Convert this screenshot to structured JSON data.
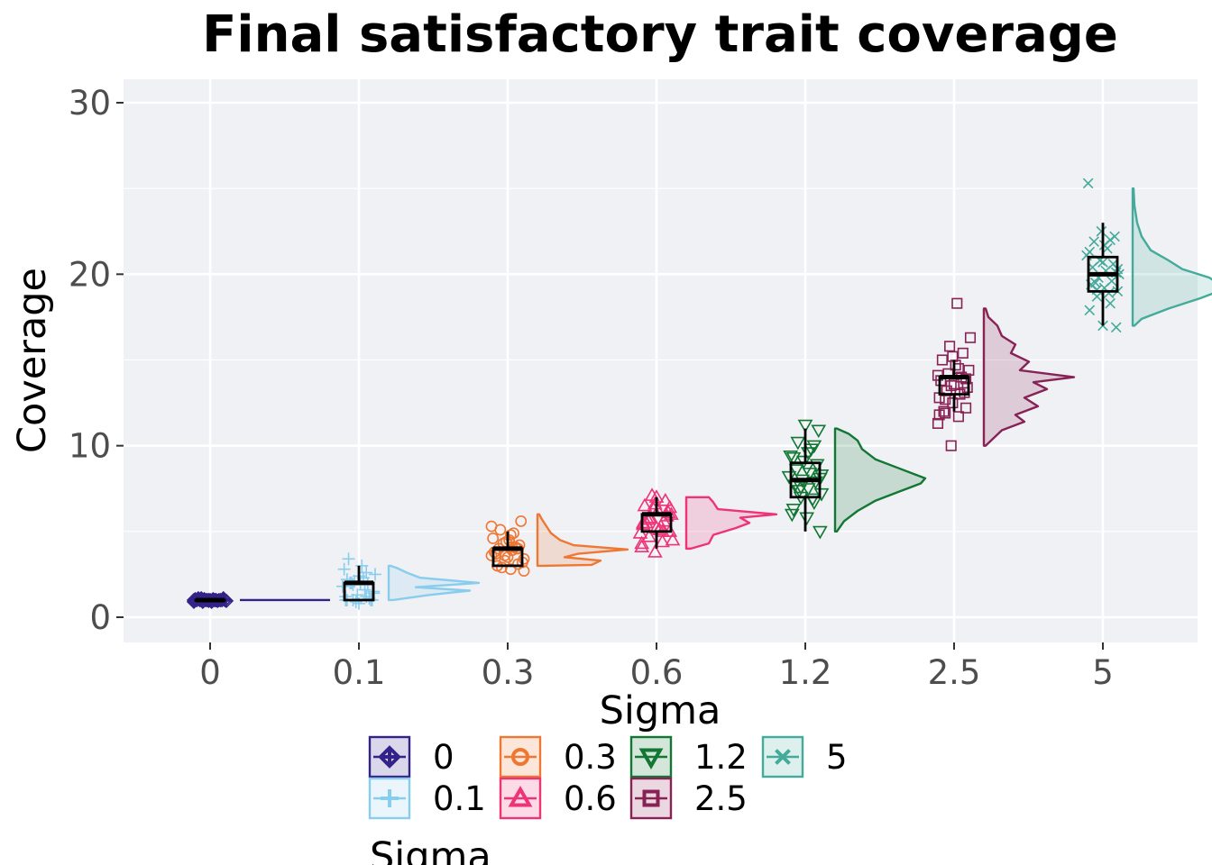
{
  "chart_data": {
    "type": "raincloud",
    "title": "Final satisfactory trait coverage",
    "xlabel": "Sigma",
    "ylabel": "Coverage",
    "ylim": [
      0,
      30
    ],
    "yticks": [
      "0",
      "10",
      "20",
      "30"
    ],
    "grid": true,
    "legend": {
      "title": "Sigma",
      "placement": "bottom",
      "entries": [
        "0",
        "0.1",
        "0.3",
        "0.6",
        "1.2",
        "2.5",
        "5"
      ]
    },
    "categories": [
      "0",
      "0.1",
      "0.3",
      "0.6",
      "1.2",
      "2.5",
      "5"
    ],
    "series": [
      {
        "name": "0",
        "color": "#332288",
        "marker": "diamond-cross",
        "box": {
          "min": 1,
          "q1": 1,
          "median": 1,
          "q3": 1,
          "max": 1
        },
        "points": [
          0.9,
          1.0,
          1.1,
          1.0,
          0.95,
          1.05,
          1.0,
          0.9,
          1.1,
          1.0,
          1.0,
          0.95,
          1.05,
          1.0,
          0.9,
          1.1,
          1.0,
          1.0,
          0.95,
          1.05,
          1.0,
          1.0,
          1.0,
          1.0,
          1.0,
          1.0,
          1.0,
          1.0,
          1.0,
          1.0
        ],
        "density": [
          [
            1,
            1.0
          ]
        ]
      },
      {
        "name": "0.1",
        "color": "#88ccee",
        "marker": "plus",
        "box": {
          "min": 1,
          "q1": 1,
          "median": 2,
          "q3": 2,
          "max": 3
        },
        "points": [
          0.8,
          1.0,
          1.2,
          1.0,
          1.5,
          2.0,
          2.2,
          1.9,
          2.1,
          2.5,
          3.0,
          3.4,
          1.1,
          0.9,
          1.8,
          2.3,
          2.0,
          1.0,
          1.3,
          2.8,
          1.6,
          2.0,
          1.0,
          2.4,
          1.2,
          2.6,
          1.9,
          1.4,
          2.0,
          1.0
        ],
        "density": [
          [
            1,
            0.05
          ],
          [
            1.3,
            0.45
          ],
          [
            1.55,
            0.9
          ],
          [
            1.75,
            0.3
          ],
          [
            2.0,
            1.0
          ],
          [
            2.3,
            0.35
          ],
          [
            2.6,
            0.2
          ],
          [
            2.85,
            0.1
          ],
          [
            3.0,
            0.02
          ]
        ]
      },
      {
        "name": "0.3",
        "color": "#ee7733",
        "marker": "circle",
        "box": {
          "min": 3,
          "q1": 3,
          "median": 4,
          "q3": 4,
          "max": 5
        },
        "points": [
          2.7,
          2.8,
          3.0,
          3.1,
          3.3,
          3.6,
          3.9,
          4.0,
          4.2,
          4.4,
          4.6,
          4.9,
          5.1,
          5.6,
          3.5,
          3.8,
          4.1,
          2.9,
          3.2,
          4.5,
          3.7,
          4.0,
          4.3,
          3.4,
          4.8,
          3.0,
          4.0,
          3.6,
          5.3,
          4.1
        ],
        "density": [
          [
            3.0,
            0.05
          ],
          [
            3.05,
            0.6
          ],
          [
            3.3,
            0.7
          ],
          [
            3.5,
            0.3
          ],
          [
            3.7,
            0.45
          ],
          [
            3.95,
            1.0
          ],
          [
            4.2,
            0.4
          ],
          [
            4.5,
            0.25
          ],
          [
            4.9,
            0.15
          ],
          [
            5.3,
            0.1
          ],
          [
            5.7,
            0.05
          ],
          [
            6.0,
            0.02
          ]
        ]
      },
      {
        "name": "0.6",
        "color": "#ee3377",
        "marker": "triangle-up",
        "box": {
          "min": 4,
          "q1": 5,
          "median": 6,
          "q3": 6,
          "max": 7
        },
        "points": [
          3.8,
          4.1,
          4.4,
          4.7,
          5.0,
          5.2,
          5.4,
          5.6,
          5.8,
          6.0,
          6.2,
          6.5,
          6.8,
          7.1,
          4.5,
          5.1,
          5.5,
          5.9,
          6.3,
          4.9,
          5.3,
          5.7,
          6.1,
          6.6,
          4.3,
          5.0,
          5.8,
          6.4,
          7.0,
          5.5
        ],
        "density": [
          [
            4.0,
            0.05
          ],
          [
            4.3,
            0.25
          ],
          [
            4.8,
            0.3
          ],
          [
            5.2,
            0.55
          ],
          [
            5.5,
            0.7
          ],
          [
            5.8,
            0.6
          ],
          [
            6.0,
            1.0
          ],
          [
            6.3,
            0.35
          ],
          [
            6.7,
            0.3
          ],
          [
            7.0,
            0.25
          ]
        ]
      },
      {
        "name": "1.2",
        "color": "#117733",
        "marker": "triangle-down",
        "box": {
          "min": 5,
          "q1": 7,
          "median": 8,
          "q3": 9,
          "max": 11
        },
        "points": [
          5.0,
          5.8,
          6.3,
          6.7,
          7.0,
          7.2,
          7.5,
          7.7,
          7.9,
          8.0,
          8.2,
          8.4,
          8.6,
          8.9,
          9.1,
          9.4,
          9.8,
          10.2,
          10.9,
          11.2,
          6.0,
          6.9,
          7.4,
          8.1,
          8.7,
          9.3,
          10.0,
          7.6,
          8.3,
          9.6
        ],
        "density": [
          [
            5.0,
            0.02
          ],
          [
            5.6,
            0.1
          ],
          [
            6.2,
            0.25
          ],
          [
            6.8,
            0.45
          ],
          [
            7.3,
            0.7
          ],
          [
            7.8,
            0.95
          ],
          [
            8.1,
            1.0
          ],
          [
            8.6,
            0.75
          ],
          [
            9.2,
            0.45
          ],
          [
            9.8,
            0.3
          ],
          [
            10.3,
            0.25
          ],
          [
            10.7,
            0.15
          ],
          [
            11.0,
            0.02
          ]
        ]
      },
      {
        "name": "2.5",
        "color": "#882255",
        "marker": "square",
        "box": {
          "min": 12,
          "q1": 13,
          "median": 14,
          "q3": 14,
          "max": 15
        },
        "points": [
          10.0,
          11.3,
          11.7,
          11.9,
          12.2,
          12.5,
          12.8,
          13.0,
          13.2,
          13.4,
          13.6,
          13.8,
          14.0,
          14.2,
          14.4,
          14.7,
          15.0,
          15.4,
          15.8,
          16.3,
          18.3,
          12.0,
          13.1,
          13.5,
          14.1,
          14.5,
          12.7,
          13.9,
          15.2,
          11.8
        ],
        "density": [
          [
            10.0,
            0.02
          ],
          [
            10.4,
            0.1
          ],
          [
            10.9,
            0.2
          ],
          [
            11.4,
            0.45
          ],
          [
            11.8,
            0.35
          ],
          [
            12.3,
            0.6
          ],
          [
            12.8,
            0.45
          ],
          [
            13.3,
            0.7
          ],
          [
            13.7,
            0.55
          ],
          [
            14.0,
            1.0
          ],
          [
            14.4,
            0.4
          ],
          [
            14.9,
            0.5
          ],
          [
            15.4,
            0.3
          ],
          [
            15.9,
            0.35
          ],
          [
            16.4,
            0.2
          ],
          [
            17.0,
            0.15
          ],
          [
            17.5,
            0.05
          ],
          [
            18.0,
            0.02
          ]
        ]
      },
      {
        "name": "5",
        "color": "#44aa99",
        "marker": "x",
        "box": {
          "min": 17,
          "q1": 19,
          "median": 20,
          "q3": 21,
          "max": 23
        },
        "points": [
          16.9,
          17.0,
          17.9,
          18.3,
          18.7,
          19.0,
          19.2,
          19.4,
          19.6,
          19.8,
          20.0,
          20.2,
          20.4,
          20.6,
          20.8,
          21.1,
          21.5,
          21.9,
          22.2,
          22.5,
          25.3,
          18.9,
          19.5,
          20.1,
          20.7,
          21.3,
          22.0,
          19.1,
          20.3,
          21.7
        ],
        "density": [
          [
            17.0,
            0.02
          ],
          [
            17.4,
            0.1
          ],
          [
            18.0,
            0.4
          ],
          [
            18.6,
            0.75
          ],
          [
            19.0,
            0.95
          ],
          [
            19.3,
            1.0
          ],
          [
            19.8,
            0.85
          ],
          [
            20.3,
            0.55
          ],
          [
            20.8,
            0.4
          ],
          [
            21.4,
            0.2
          ],
          [
            22.2,
            0.1
          ],
          [
            23.0,
            0.05
          ],
          [
            24.0,
            0.02
          ],
          [
            25.0,
            0.01
          ]
        ]
      }
    ]
  }
}
